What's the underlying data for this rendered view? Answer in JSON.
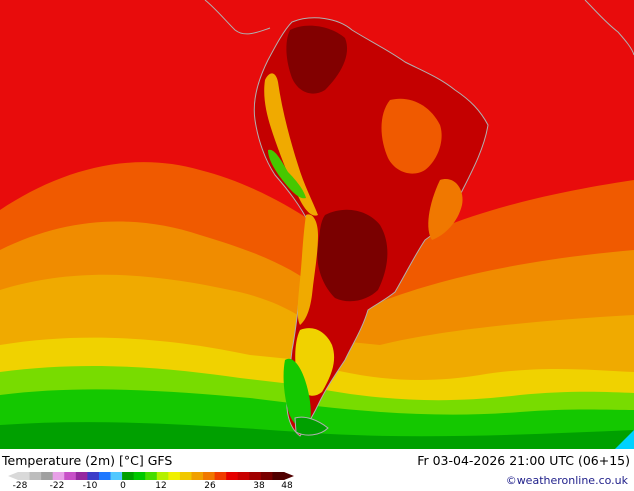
{
  "title": "Temperature (2m) [°C] GFS",
  "timestamp": "Fr 03-04-2026 21:00 UTC (06+15)",
  "credit": "©weatheronline.co.uk",
  "legend": {
    "ticks": [
      "-28",
      "-22",
      "-10",
      "0",
      "12",
      "26",
      "38",
      "48"
    ],
    "colors": [
      "#d9d9d9",
      "#bdbdbd",
      "#a0a0a0",
      "#e8a0e8",
      "#c850c8",
      "#9628a0",
      "#3c3cc8",
      "#1e78ff",
      "#50c8ff",
      "#00a000",
      "#00c800",
      "#46dc00",
      "#b4f000",
      "#f0f000",
      "#f0c800",
      "#f0a000",
      "#f07800",
      "#f03c00",
      "#e60000",
      "#c80000",
      "#a00000",
      "#780000",
      "#500000"
    ]
  },
  "palette": {
    "ocean_red": "#e80c0c",
    "deep_red": "#a80000",
    "dark_red": "#6e0000",
    "orange_red": "#f05a00",
    "orange": "#f08c00",
    "amber": "#f0aa00",
    "yellow": "#f0d200",
    "lime": "#78dc00",
    "green": "#14c800",
    "dark_green": "#00a000",
    "land_gray": "#a0a0a0",
    "cyan": "#00d2ff"
  }
}
